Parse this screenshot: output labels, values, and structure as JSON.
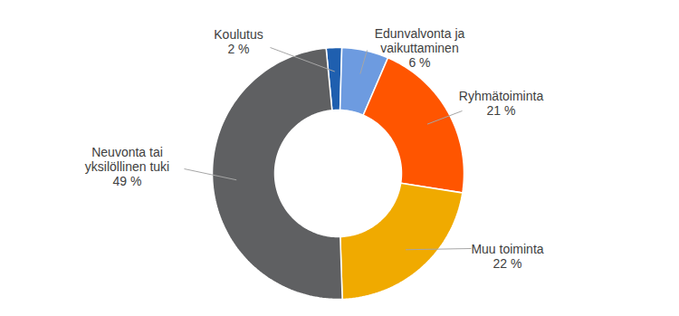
{
  "chart_data": {
    "type": "donut",
    "categories": [
      "Koulutus",
      "Edunvalvonta ja vaikuttaminen",
      "Ryhmätoiminta",
      "Muu toiminta",
      "Neuvonta tai yksilöllinen tuki"
    ],
    "values": [
      2,
      6,
      21,
      22,
      49
    ],
    "value_labels": [
      "2 %",
      "6 %",
      "21 %",
      "22 %",
      "49 %"
    ],
    "colors": [
      "#1f5faf",
      "#6d9be0",
      "#ff5500",
      "#f0aa00",
      "#5f6062"
    ],
    "data_labels": true
  }
}
